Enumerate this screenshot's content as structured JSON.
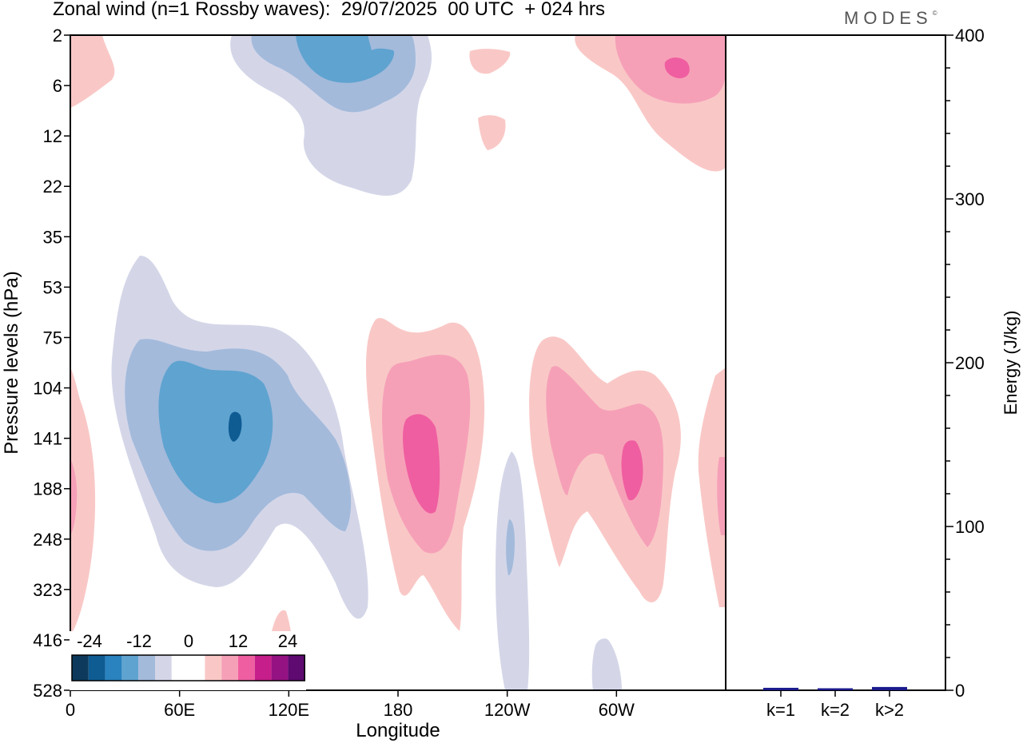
{
  "chart_data": {
    "type": "heatmap",
    "title": "Zonal wind (n=1 Rossby waves):  29/07/2025  00 UTC  + 024 hrs",
    "xlabel": "Longitude",
    "ylabel": "Pressure levels (hPa)",
    "x_ticks": [
      "0",
      "60E",
      "120E",
      "180",
      "120W",
      "60W"
    ],
    "y_ticks": [
      "2",
      "6",
      "12",
      "22",
      "35",
      "53",
      "75",
      "104",
      "141",
      "188",
      "248",
      "323",
      "416",
      "528"
    ],
    "colorbar": {
      "labels": [
        "-24",
        "-12",
        "0",
        "12",
        "24"
      ],
      "colors": [
        "#0d3a5c",
        "#0f5c93",
        "#2a82bf",
        "#5fa3d0",
        "#a3badb",
        "#d4d6e8",
        "#ffffff",
        "#ffffff",
        "#f9c8c6",
        "#f6a0b8",
        "#ef5ea0",
        "#c61e8a",
        "#951283",
        "#5e0a70"
      ]
    },
    "energy_panel": {
      "ylabel": "Energy (J/kg)",
      "ylim": [
        0,
        400
      ],
      "y_ticks": [
        "0",
        "100",
        "200",
        "300",
        "400"
      ],
      "categories": [
        "k=1",
        "k=2",
        "k>2"
      ],
      "values": [
        1.5,
        0.8,
        2.0
      ],
      "bar_color": "#1a1a8c"
    }
  },
  "logo": "MODES"
}
